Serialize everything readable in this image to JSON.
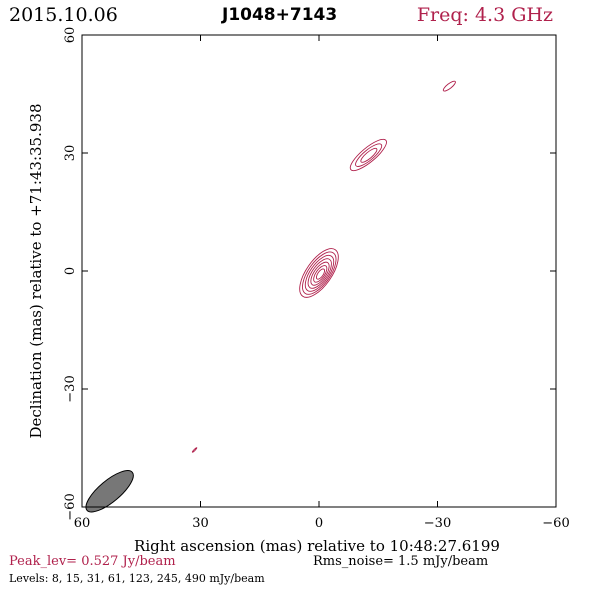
{
  "header": {
    "date": "2015.10.06",
    "source": "J1048+7143",
    "freq": "Freq: 4.3 GHz"
  },
  "footer": {
    "peak": "Peak_lev=  0.527 Jy/beam",
    "rms": "Rms_noise=   1.5 mJy/beam",
    "levels": "Levels:   8,  15,  31,  61, 123, 245, 490 mJy/beam"
  },
  "colors": {
    "contour": "#b0214c",
    "beam": "#777777",
    "axis": "#000000"
  },
  "chart_data": {
    "type": "contour",
    "title": "J1048+7143",
    "xlabel": "Right ascension (mas) relative to 10:48:27.6199",
    "ylabel": "Declination (mas) relative to +71:43:35.938",
    "xlim": [
      60,
      -60
    ],
    "ylim": [
      -60,
      60
    ],
    "xticks": [
      60,
      30,
      0,
      -30,
      -60
    ],
    "yticks": [
      -60,
      -30,
      0,
      30,
      60
    ],
    "xtick_labels": [
      "60",
      "30",
      "0",
      "−30",
      "−60"
    ],
    "ytick_labels": [
      "−60",
      "−30",
      "0",
      "30",
      "60"
    ],
    "levels_mjy_per_beam": [
      8,
      15,
      31,
      61,
      123,
      245,
      490
    ],
    "peak_jy_per_beam": 0.527,
    "rms_mjy_per_beam": 1.5,
    "components": [
      {
        "name": "core",
        "x": 0,
        "y": -0.5,
        "semi_major_mas": 7.2,
        "semi_minor_mas": 3.2,
        "pa_deg": 55,
        "n_contours": 7
      },
      {
        "name": "jet-inner",
        "x": -12.5,
        "y": 29.5,
        "semi_major_mas": 5.8,
        "semi_minor_mas": 1.8,
        "pa_deg": 40,
        "n_contours": 3
      },
      {
        "name": "jet-outer",
        "x": -33,
        "y": 47,
        "semi_major_mas": 1.9,
        "semi_minor_mas": 0.6,
        "pa_deg": 38,
        "n_contours": 1
      },
      {
        "name": "spot",
        "x": 31.5,
        "y": -45.5,
        "semi_major_mas": 0.8,
        "semi_minor_mas": 0.15,
        "pa_deg": 45,
        "n_contours": 1
      }
    ],
    "beam": {
      "x": 53,
      "y": -56,
      "semi_major_mas": 2.5,
      "semi_minor_mas": 0.9,
      "pa_deg": 40
    }
  }
}
